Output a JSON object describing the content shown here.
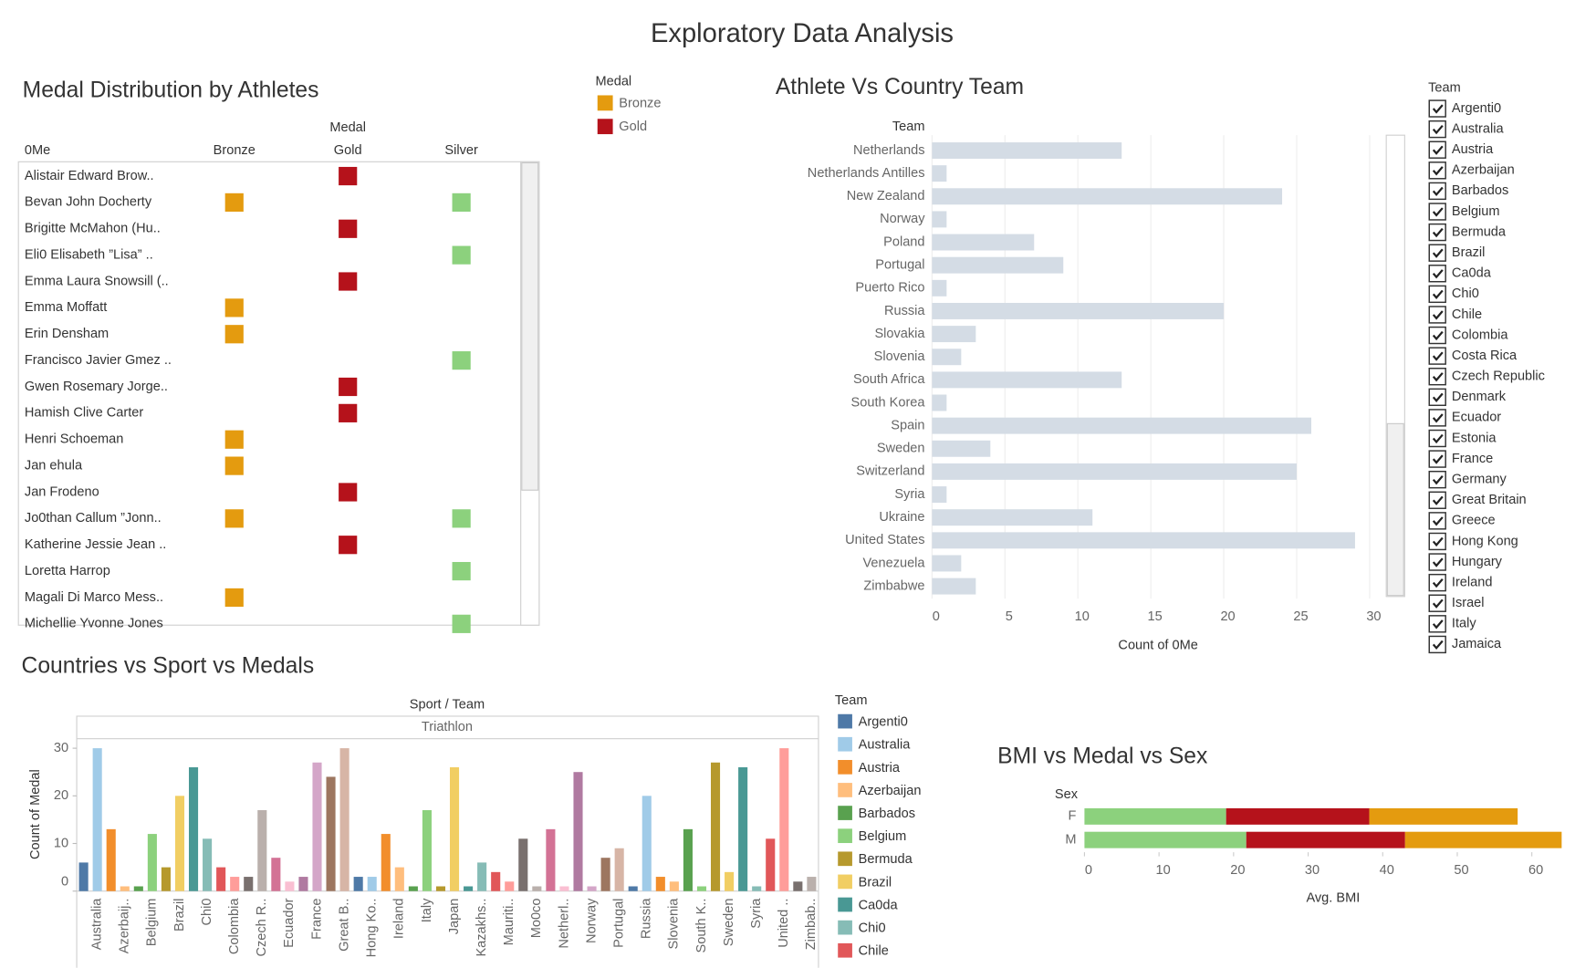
{
  "title": "Exploratory Data Analysis",
  "chart_data": [
    {
      "type": "dot_table",
      "title": "Medal Distribution by Athletes",
      "column_header": "Medal",
      "row_header": "0Me",
      "columns": [
        "Bronze",
        "Gold",
        "Silver"
      ],
      "colors": [
        "#e49b0f",
        "#b5121b",
        "#8cd17d"
      ],
      "rows": [
        "Alistair Edward Brow..",
        "Bevan John Docherty",
        "Brigitte McMahon (Hu..",
        "Eli0 Elisabeth ”Lisa” ..",
        "Emma Laura Snowsill (..",
        "Emma Moffatt",
        "Erin Densham",
        "Francisco Javier Gmez ..",
        "Gwen Rosemary Jorge..",
        "Hamish Clive Carter",
        "Henri Schoeman",
        "Jan ehula",
        "Jan Frodeno",
        "Jo0than Callum ”Jonn..",
        "Katherine Jessie Jean ..",
        "Loretta Harrop",
        "Magali Di Marco Mess..",
        "Michellie Yvonne Jones"
      ],
      "values": [
        [
          null,
          1,
          null
        ],
        [
          1,
          null,
          1
        ],
        [
          null,
          1,
          null
        ],
        [
          null,
          null,
          1
        ],
        [
          null,
          1,
          null
        ],
        [
          1,
          null,
          null
        ],
        [
          1,
          null,
          null
        ],
        [
          null,
          null,
          1
        ],
        [
          null,
          1,
          null
        ],
        [
          null,
          1,
          null
        ],
        [
          1,
          null,
          null
        ],
        [
          1,
          null,
          null
        ],
        [
          null,
          1,
          null
        ],
        [
          1,
          null,
          1
        ],
        [
          null,
          1,
          null
        ],
        [
          null,
          null,
          1
        ],
        [
          1,
          null,
          null
        ],
        [
          null,
          null,
          1
        ]
      ],
      "legend": {
        "title": "Medal",
        "items": [
          {
            "name": "Bronze",
            "color": "#e49b0f"
          },
          {
            "name": "Gold",
            "color": "#b5121b"
          }
        ]
      }
    },
    {
      "type": "hbar",
      "title": "Athlete Vs Country Team",
      "row_header": "Team",
      "x_label": "Count of 0Me",
      "categories": [
        "Netherlands",
        "Netherlands Antilles",
        "New Zealand",
        "Norway",
        "Poland",
        "Portugal",
        "Puerto Rico",
        "Russia",
        "Slovakia",
        "Slovenia",
        "South Africa",
        "South Korea",
        "Spain",
        "Sweden",
        "Switzerland",
        "Syria",
        "Ukraine",
        "United States",
        "Venezuela",
        "Zimbabwe"
      ],
      "values": [
        13,
        1,
        24,
        1,
        7,
        9,
        1,
        20,
        3,
        2,
        13,
        1,
        26,
        4,
        25,
        1,
        11,
        29,
        2,
        3
      ],
      "color": "#d4dce5",
      "xlim": [
        0,
        31
      ],
      "xticks": [
        0,
        5,
        10,
        15,
        20,
        25,
        30
      ],
      "grid": true
    },
    {
      "type": "bar",
      "title": "Countries vs Sport vs Medals",
      "header": "Sport / Team",
      "panel": "Triathlon",
      "y_label": "Count of Medal",
      "categories": [
        null,
        "Australia",
        null,
        "Azerbaij..",
        null,
        "Belgium",
        null,
        "Brazil",
        null,
        "Chi0",
        null,
        "Colombia",
        null,
        "Czech R..",
        null,
        "Ecuador",
        null,
        "France",
        null,
        "Great B..",
        null,
        "Hong Ko..",
        null,
        "Ireland",
        null,
        "Italy",
        null,
        "Japan",
        null,
        "Kazakhs..",
        null,
        "Mauriti..",
        null,
        "Mo0co",
        null,
        "Netherl..",
        null,
        "Norway",
        null,
        "Portugal",
        null,
        "Russia",
        null,
        "Slovenia",
        null,
        "South K..",
        null,
        "Sweden",
        null,
        "Syria",
        null,
        "United ..",
        null,
        "Zimbab.."
      ],
      "values": [
        6,
        30,
        13,
        1,
        1,
        12,
        5,
        20,
        26,
        11,
        5,
        3,
        3,
        17,
        7,
        2,
        3,
        27,
        24,
        30,
        3,
        3,
        12,
        5,
        1,
        17,
        1,
        26,
        1,
        6,
        4,
        2,
        11,
        1,
        13,
        1,
        25,
        1,
        7,
        9,
        1,
        20,
        3,
        2,
        13,
        1,
        27,
        4,
        26,
        1,
        11,
        30,
        2,
        3
      ],
      "palette": [
        "#4e79a7",
        "#a0cbe8",
        "#f28e2b",
        "#ffbe7d",
        "#59a14f",
        "#8cd17d",
        "#b6992d",
        "#f1ce63",
        "#499894",
        "#86bcb6",
        "#e15759",
        "#ff9d9a",
        "#79706e",
        "#bab0ac",
        "#d37295",
        "#fabfd2",
        "#b07aa1",
        "#d4a6c8",
        "#9d7660",
        "#d7b5a6"
      ],
      "ylim": [
        0,
        32
      ],
      "yticks": [
        0,
        10,
        20,
        30
      ],
      "legend": {
        "title": "Team",
        "items": [
          "Argenti0",
          "Australia",
          "Austria",
          "Azerbaijan",
          "Barbados",
          "Belgium",
          "Bermuda",
          "Brazil",
          "Ca0da",
          "Chi0",
          "Chile"
        ]
      }
    },
    {
      "type": "stacked_hbar",
      "title": "BMI vs Medal vs Sex",
      "row_header": "Sex",
      "x_label": "Avg. BMI",
      "categories": [
        "F",
        "M"
      ],
      "series": [
        {
          "color": "#8cd17d",
          "values": [
            19.0,
            21.7
          ]
        },
        {
          "color": "#b5121b",
          "values": [
            19.2,
            21.3
          ]
        },
        {
          "color": "#e49b0f",
          "values": [
            19.9,
            21.0
          ]
        }
      ],
      "xlim": [
        0,
        66
      ],
      "xticks": [
        0,
        10,
        20,
        30,
        40,
        50,
        60
      ]
    }
  ],
  "filter": {
    "title": "Team",
    "items": [
      "Argenti0",
      "Australia",
      "Austria",
      "Azerbaijan",
      "Barbados",
      "Belgium",
      "Bermuda",
      "Brazil",
      "Ca0da",
      "Chi0",
      "Chile",
      "Colombia",
      "Costa Rica",
      "Czech Republic",
      "Denmark",
      "Ecuador",
      "Estonia",
      "France",
      "Germany",
      "Great Britain",
      "Greece",
      "Hong Kong",
      "Hungary",
      "Ireland",
      "Israel",
      "Italy",
      "Jamaica"
    ]
  }
}
